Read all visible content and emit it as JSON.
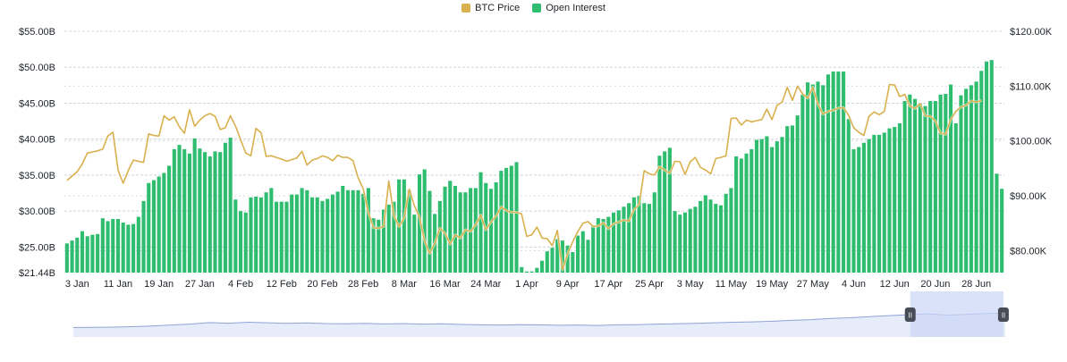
{
  "legend": {
    "price_label": "BTC Price",
    "oi_label": "Open Interest"
  },
  "colors": {
    "price": "#D9B04E",
    "open_interest": "#2EBD6E",
    "grid": "#cfd3d8",
    "navigator_fill": "#E6ECFA",
    "navigator_line": "#8FA3D6",
    "navigator_selection": "#C9D6F5",
    "handle": "#474D57",
    "text": "#1E2329"
  },
  "chart_data": {
    "type": "bar",
    "left_axis": {
      "ticks": [
        "$55.00B",
        "$50.00B",
        "$45.00B",
        "$40.00B",
        "$35.00B",
        "$30.00B",
        "$25.00B",
        "$21.44B"
      ],
      "tick_values": [
        55,
        50,
        45,
        40,
        35,
        30,
        25,
        21.44
      ],
      "range": [
        21.44,
        55
      ]
    },
    "right_axis": {
      "ticks": [
        "$120.00K",
        "$110.00K",
        "$100.00K",
        "$90.00K",
        "$80.00K"
      ],
      "tick_values": [
        120,
        110,
        100,
        90,
        80
      ],
      "range": [
        76,
        120
      ]
    },
    "x_tick_labels": [
      "3 Jan",
      "11 Jan",
      "19 Jan",
      "27 Jan",
      "4 Feb",
      "12 Feb",
      "20 Feb",
      "28 Feb",
      "8 Mar",
      "16 Mar",
      "24 Mar",
      "1 Apr",
      "9 Apr",
      "17 Apr",
      "25 Apr",
      "3 May",
      "11 May",
      "19 May",
      "27 May",
      "4 Jun",
      "12 Jun",
      "20 Jun",
      "28 Jun"
    ],
    "x_tick_index": [
      2,
      10,
      18,
      26,
      34,
      42,
      50,
      58,
      66,
      74,
      82,
      90,
      98,
      106,
      114,
      122,
      130,
      138,
      146,
      154,
      162,
      170,
      178
    ],
    "series": [
      {
        "name": "Open Interest",
        "kind": "bar",
        "axis": "left",
        "values": [
          25.5,
          25.9,
          26.3,
          27.2,
          26.5,
          26.7,
          26.8,
          29.0,
          28.6,
          28.9,
          28.9,
          28.4,
          28.1,
          28.2,
          29.2,
          31.4,
          33.9,
          34.3,
          34.8,
          35.3,
          36.3,
          38.6,
          39.2,
          38.6,
          38.0,
          40.1,
          38.7,
          38.2,
          37.6,
          38.3,
          38.2,
          39.5,
          40.2,
          31.6,
          30.0,
          29.8,
          31.9,
          32.0,
          31.9,
          32.6,
          33.2,
          31.3,
          31.3,
          31.3,
          32.3,
          32.3,
          33.2,
          32.9,
          31.9,
          31.9,
          31.4,
          31.7,
          32.3,
          32.7,
          33.5,
          32.9,
          32.9,
          32.9,
          32.4,
          33.2,
          29.0,
          28.8,
          30.2,
          30.9,
          31.3,
          34.4,
          34.4,
          32.9,
          29.5,
          35.1,
          35.8,
          32.8,
          29.6,
          31.4,
          33.4,
          34.2,
          33.5,
          32.6,
          32.6,
          33.2,
          33.2,
          35.4,
          33.9,
          33.1,
          34.0,
          35.6,
          36.0,
          36.3,
          36.8,
          22.2,
          21.6,
          21.6,
          22.1,
          23.1,
          24.4,
          24.9,
          26.1,
          25.9,
          25.2,
          24.3,
          26.6,
          27.2,
          26.0,
          28.0,
          29.0,
          28.9,
          29.2,
          29.8,
          30.1,
          30.6,
          31.1,
          31.9,
          32.1,
          31.1,
          31.0,
          32.6,
          37.7,
          38.3,
          38.8,
          30.0,
          29.5,
          29.8,
          30.3,
          30.6,
          31.4,
          32.2,
          31.6,
          31.0,
          30.8,
          32.4,
          33.2,
          37.6,
          37.3,
          38.0,
          38.6,
          39.9,
          40.0,
          40.4,
          38.9,
          39.7,
          40.3,
          41.8,
          41.9,
          43.3,
          46.2,
          47.9,
          47.6,
          48.0,
          47.5,
          49.0,
          49.4,
          49.4,
          49.4,
          42.8,
          38.6,
          38.9,
          39.5,
          40.0,
          40.6,
          40.6,
          40.9,
          41.5,
          41.7,
          42.2,
          45.3,
          46.2,
          45.6,
          45.0,
          44.6,
          45.3,
          45.3,
          46.2,
          46.3,
          47.6,
          42.2,
          46.1,
          47.0,
          47.5,
          48.0,
          49.5,
          50.8,
          51.0,
          35.2,
          33.1
        ]
      },
      {
        "name": "BTC Price",
        "kind": "line",
        "axis": "right",
        "values": [
          92.8,
          93.6,
          94.4,
          95.8,
          97.8,
          98.0,
          98.2,
          98.5,
          100.9,
          101.6,
          94.7,
          92.3,
          94.6,
          96.5,
          96.3,
          96.1,
          101.3,
          101.0,
          100.9,
          104.6,
          103.8,
          104.4,
          102.6,
          101.4,
          105.7,
          102.7,
          103.8,
          104.6,
          105.0,
          104.5,
          102.1,
          102.4,
          104.6,
          102.7,
          100.2,
          97.8,
          97.3,
          102.3,
          101.5,
          97.2,
          97.3,
          97.0,
          96.7,
          96.3,
          96.6,
          96.9,
          98.1,
          95.6,
          96.5,
          96.8,
          97.3,
          97.0,
          96.4,
          97.4,
          97.0,
          97.0,
          96.4,
          93.3,
          91.3,
          86.9,
          84.2,
          84.1,
          84.4,
          92.7,
          86.4,
          84.4,
          85.9,
          91.2,
          88.2,
          86.1,
          81.8,
          79.5,
          81.3,
          84.1,
          83.2,
          81.2,
          82.9,
          82.3,
          83.8,
          83.5,
          84.7,
          86.5,
          83.8,
          85.2,
          86.3,
          88.0,
          87.3,
          87.0,
          87.0,
          86.7,
          82.6,
          82.9,
          84.3,
          82.3,
          82.2,
          80.9,
          83.7,
          76.5,
          79.4,
          81.6,
          83.5,
          85.0,
          85.3,
          84.4,
          84.5,
          85.1,
          84.0,
          84.9,
          85.2,
          85.6,
          85.4,
          87.5,
          88.4,
          94.6,
          94.0,
          93.8,
          95.3,
          94.7,
          94.1,
          96.3,
          96.2,
          93.9,
          96.2,
          97.0,
          95.2,
          94.7,
          94.0,
          96.8,
          97.0,
          97.3,
          104.1,
          104.2,
          102.9,
          103.8,
          103.5,
          103.7,
          103.9,
          105.8,
          103.9,
          106.5,
          107.1,
          109.8,
          107.4,
          110.0,
          108.6,
          107.8,
          109.8,
          106.7,
          104.9,
          105.4,
          105.6,
          106.0,
          106.1,
          104.7,
          102.4,
          101.6,
          101.0,
          104.5,
          105.3,
          104.8,
          105.4,
          110.3,
          110.2,
          108.1,
          108.5,
          106.4,
          105.9,
          106.8,
          104.6,
          104.5,
          103.6,
          101.4,
          101.2,
          103.9,
          105.4,
          106.2,
          106.5,
          107.3,
          107.1,
          107.4
        ]
      }
    ],
    "navigator": {
      "selection_start_label": "II",
      "selection_end_label": "II",
      "selection_range_fraction": [
        0.898,
        0.998
      ],
      "values": [
        0.22,
        0.23,
        0.24,
        0.26,
        0.3,
        0.35,
        0.4,
        0.48,
        0.45,
        0.5,
        0.47,
        0.44,
        0.46,
        0.43,
        0.42,
        0.44,
        0.41,
        0.43,
        0.4,
        0.42,
        0.38,
        0.36,
        0.35,
        0.37,
        0.36,
        0.34,
        0.35,
        0.33,
        0.36,
        0.37,
        0.4,
        0.42,
        0.44,
        0.47,
        0.5,
        0.52,
        0.55,
        0.6,
        0.64,
        0.7,
        0.74,
        0.8,
        0.85,
        0.9,
        0.95,
        0.88,
        0.92,
        0.96,
        0.98
      ]
    }
  }
}
